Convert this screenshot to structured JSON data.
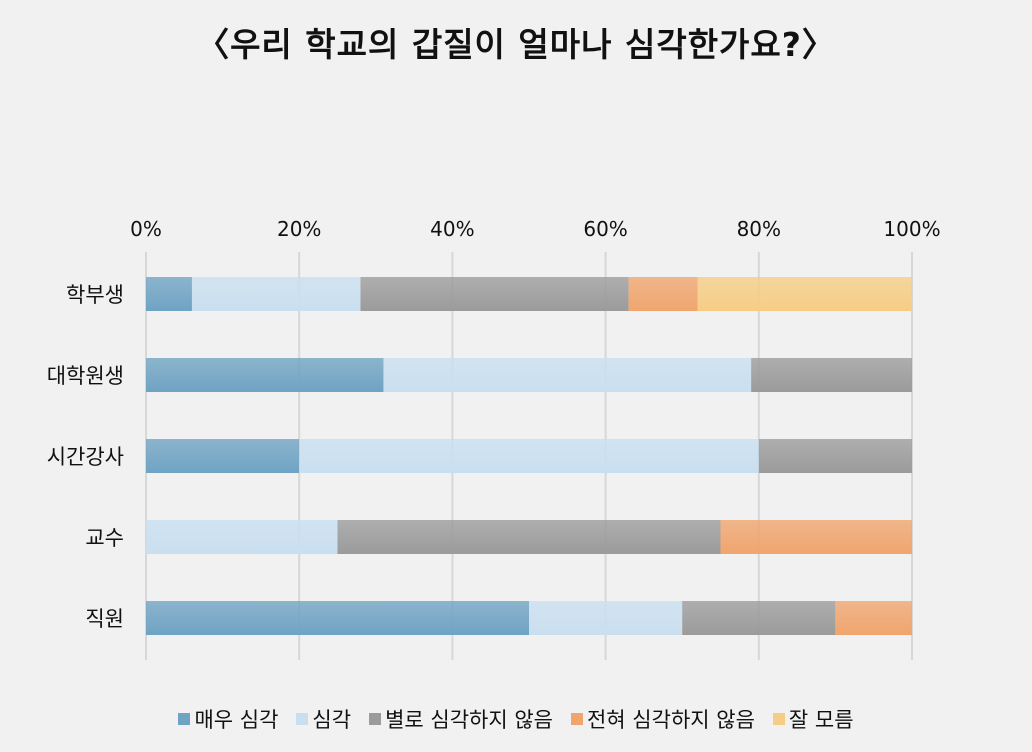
{
  "chart_data": {
    "type": "bar",
    "orientation": "horizontal",
    "stacked": "percent",
    "title": "〈우리 학교의 갑질이 얼마나 심각한가요?〉",
    "categories": [
      "학부생",
      "대학원생",
      "시간강사",
      "교수",
      "직원"
    ],
    "xlim": [
      0,
      100
    ],
    "xticks": [
      "0%",
      "20%",
      "40%",
      "60%",
      "80%",
      "100%"
    ],
    "grid": true,
    "legend_position": "bottom",
    "series": [
      {
        "name": "매우 심각",
        "color": "#6fa3c3",
        "values": [
          6,
          31,
          20,
          0,
          50
        ]
      },
      {
        "name": "심각",
        "color": "#c9dff0",
        "values": [
          22,
          48,
          60,
          25,
          20
        ]
      },
      {
        "name": "별로 심각하지 않음",
        "color": "#9b9b9b",
        "values": [
          35,
          21,
          20,
          50,
          20
        ]
      },
      {
        "name": "전혀 심각하지 않음",
        "color": "#f0a56e",
        "values": [
          9,
          0,
          0,
          25,
          10
        ]
      },
      {
        "name": "잘 모름",
        "color": "#f6cd86",
        "values": [
          28,
          0,
          0,
          0,
          0
        ]
      }
    ]
  }
}
